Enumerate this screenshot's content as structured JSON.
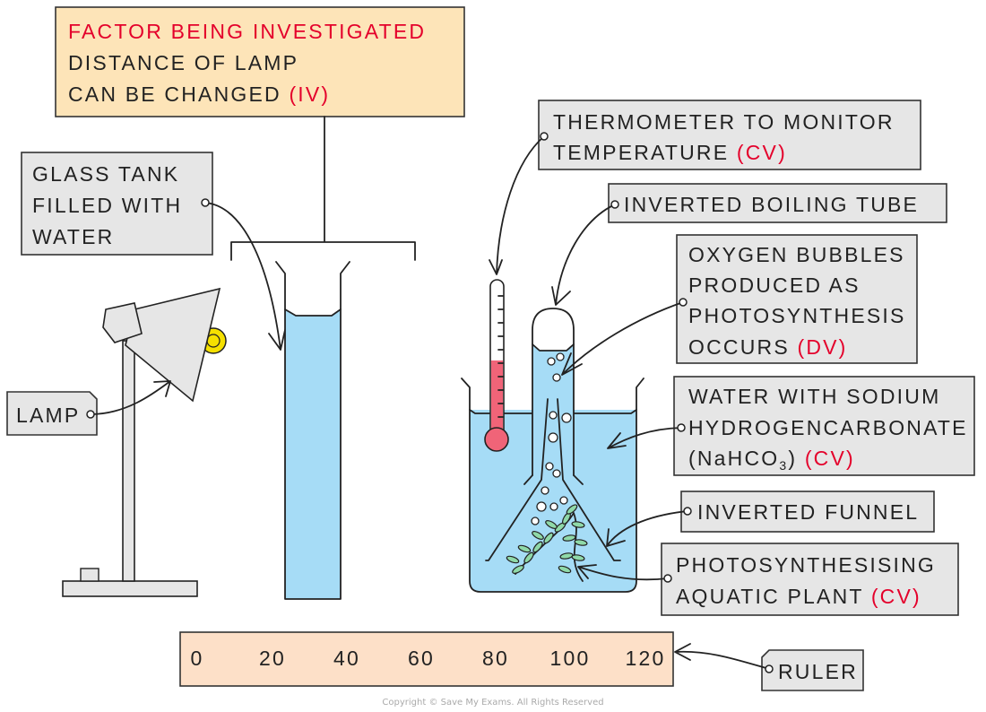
{
  "factor_box": {
    "line1": "FACTOR BEING INVESTIGATED",
    "line2": "DISTANCE OF LAMP",
    "line3_text": "CAN BE CHANGED",
    "line3_tag": "(IV)"
  },
  "glass_tank": {
    "line1": "GLASS TANK",
    "line2": "FILLED WITH",
    "line3": "WATER"
  },
  "lamp": {
    "label": "LAMP"
  },
  "thermometer": {
    "line1": "THERMOMETER TO MONITOR",
    "line2_text": "TEMPERATURE",
    "line2_tag": "(CV)"
  },
  "boiling_tube": {
    "label": "INVERTED BOILING TUBE"
  },
  "oxygen": {
    "line1": "OXYGEN BUBBLES",
    "line2": "PRODUCED AS",
    "line3": "PHOTOSYNTHESIS",
    "line4_text": "OCCURS",
    "line4_tag": "(DV)"
  },
  "water_sodium": {
    "line1": "WATER WITH SODIUM",
    "line2": "HYDROGENCARBONATE",
    "formula_main": "(NaHCO",
    "formula_sub": "3",
    "formula_close": ")",
    "tag": "(CV)"
  },
  "funnel": {
    "label": "INVERTED FUNNEL"
  },
  "plant": {
    "line1": "PHOTOSYNTHESISING",
    "line2_text": "AQUATIC PLANT",
    "line2_tag": "(CV)"
  },
  "ruler": {
    "label": "RULER",
    "ticks": [
      "0",
      "20",
      "40",
      "60",
      "80",
      "100",
      "120"
    ]
  },
  "copyright": "Copyright © Save My Exams. All Rights Reserved",
  "colors": {
    "water": "#a6dcf6",
    "highlight_text": "#e4002b",
    "factor_box": "#fde4b8",
    "ruler": "#fde0c8",
    "thermometer_liquid": "#f06478",
    "bulb": "#f5e000"
  }
}
